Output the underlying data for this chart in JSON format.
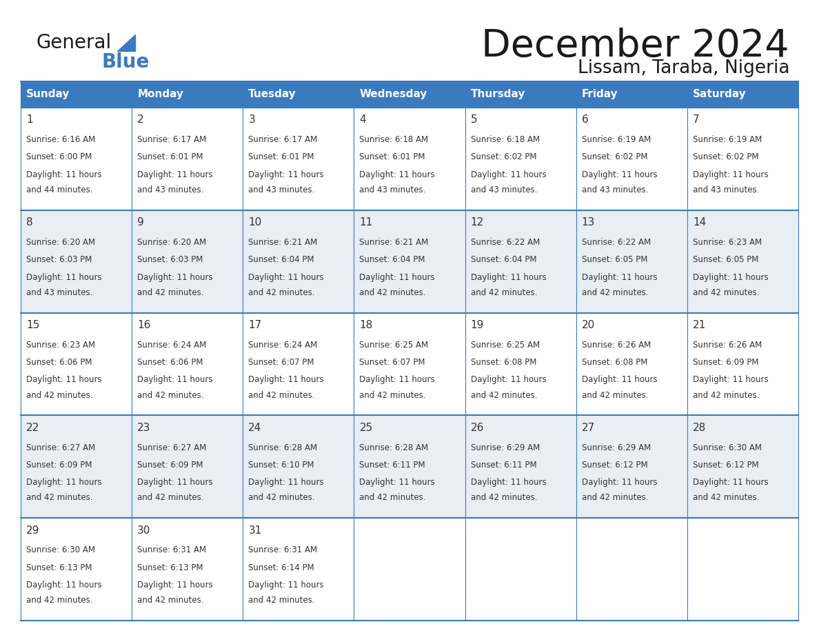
{
  "title": "December 2024",
  "subtitle": "Lissam, Taraba, Nigeria",
  "header_color": "#3a7abf",
  "header_text_color": "#ffffff",
  "day_names": [
    "Sunday",
    "Monday",
    "Tuesday",
    "Wednesday",
    "Thursday",
    "Friday",
    "Saturday"
  ],
  "bg_color": "#ffffff",
  "cell_bg_odd": "#e8eef4",
  "cell_bg_even": "#ffffff",
  "border_color": "#3a7abf",
  "text_color": "#333333",
  "days": [
    {
      "date": 1,
      "col": 0,
      "row": 0,
      "sunrise": "6:16 AM",
      "sunset": "6:00 PM",
      "daylight_min": "44"
    },
    {
      "date": 2,
      "col": 1,
      "row": 0,
      "sunrise": "6:17 AM",
      "sunset": "6:01 PM",
      "daylight_min": "43"
    },
    {
      "date": 3,
      "col": 2,
      "row": 0,
      "sunrise": "6:17 AM",
      "sunset": "6:01 PM",
      "daylight_min": "43"
    },
    {
      "date": 4,
      "col": 3,
      "row": 0,
      "sunrise": "6:18 AM",
      "sunset": "6:01 PM",
      "daylight_min": "43"
    },
    {
      "date": 5,
      "col": 4,
      "row": 0,
      "sunrise": "6:18 AM",
      "sunset": "6:02 PM",
      "daylight_min": "43"
    },
    {
      "date": 6,
      "col": 5,
      "row": 0,
      "sunrise": "6:19 AM",
      "sunset": "6:02 PM",
      "daylight_min": "43"
    },
    {
      "date": 7,
      "col": 6,
      "row": 0,
      "sunrise": "6:19 AM",
      "sunset": "6:02 PM",
      "daylight_min": "43"
    },
    {
      "date": 8,
      "col": 0,
      "row": 1,
      "sunrise": "6:20 AM",
      "sunset": "6:03 PM",
      "daylight_min": "43"
    },
    {
      "date": 9,
      "col": 1,
      "row": 1,
      "sunrise": "6:20 AM",
      "sunset": "6:03 PM",
      "daylight_min": "42"
    },
    {
      "date": 10,
      "col": 2,
      "row": 1,
      "sunrise": "6:21 AM",
      "sunset": "6:04 PM",
      "daylight_min": "42"
    },
    {
      "date": 11,
      "col": 3,
      "row": 1,
      "sunrise": "6:21 AM",
      "sunset": "6:04 PM",
      "daylight_min": "42"
    },
    {
      "date": 12,
      "col": 4,
      "row": 1,
      "sunrise": "6:22 AM",
      "sunset": "6:04 PM",
      "daylight_min": "42"
    },
    {
      "date": 13,
      "col": 5,
      "row": 1,
      "sunrise": "6:22 AM",
      "sunset": "6:05 PM",
      "daylight_min": "42"
    },
    {
      "date": 14,
      "col": 6,
      "row": 1,
      "sunrise": "6:23 AM",
      "sunset": "6:05 PM",
      "daylight_min": "42"
    },
    {
      "date": 15,
      "col": 0,
      "row": 2,
      "sunrise": "6:23 AM",
      "sunset": "6:06 PM",
      "daylight_min": "42"
    },
    {
      "date": 16,
      "col": 1,
      "row": 2,
      "sunrise": "6:24 AM",
      "sunset": "6:06 PM",
      "daylight_min": "42"
    },
    {
      "date": 17,
      "col": 2,
      "row": 2,
      "sunrise": "6:24 AM",
      "sunset": "6:07 PM",
      "daylight_min": "42"
    },
    {
      "date": 18,
      "col": 3,
      "row": 2,
      "sunrise": "6:25 AM",
      "sunset": "6:07 PM",
      "daylight_min": "42"
    },
    {
      "date": 19,
      "col": 4,
      "row": 2,
      "sunrise": "6:25 AM",
      "sunset": "6:08 PM",
      "daylight_min": "42"
    },
    {
      "date": 20,
      "col": 5,
      "row": 2,
      "sunrise": "6:26 AM",
      "sunset": "6:08 PM",
      "daylight_min": "42"
    },
    {
      "date": 21,
      "col": 6,
      "row": 2,
      "sunrise": "6:26 AM",
      "sunset": "6:09 PM",
      "daylight_min": "42"
    },
    {
      "date": 22,
      "col": 0,
      "row": 3,
      "sunrise": "6:27 AM",
      "sunset": "6:09 PM",
      "daylight_min": "42"
    },
    {
      "date": 23,
      "col": 1,
      "row": 3,
      "sunrise": "6:27 AM",
      "sunset": "6:09 PM",
      "daylight_min": "42"
    },
    {
      "date": 24,
      "col": 2,
      "row": 3,
      "sunrise": "6:28 AM",
      "sunset": "6:10 PM",
      "daylight_min": "42"
    },
    {
      "date": 25,
      "col": 3,
      "row": 3,
      "sunrise": "6:28 AM",
      "sunset": "6:11 PM",
      "daylight_min": "42"
    },
    {
      "date": 26,
      "col": 4,
      "row": 3,
      "sunrise": "6:29 AM",
      "sunset": "6:11 PM",
      "daylight_min": "42"
    },
    {
      "date": 27,
      "col": 5,
      "row": 3,
      "sunrise": "6:29 AM",
      "sunset": "6:12 PM",
      "daylight_min": "42"
    },
    {
      "date": 28,
      "col": 6,
      "row": 3,
      "sunrise": "6:30 AM",
      "sunset": "6:12 PM",
      "daylight_min": "42"
    },
    {
      "date": 29,
      "col": 0,
      "row": 4,
      "sunrise": "6:30 AM",
      "sunset": "6:13 PM",
      "daylight_min": "42"
    },
    {
      "date": 30,
      "col": 1,
      "row": 4,
      "sunrise": "6:31 AM",
      "sunset": "6:13 PM",
      "daylight_min": "42"
    },
    {
      "date": 31,
      "col": 2,
      "row": 4,
      "sunrise": "6:31 AM",
      "sunset": "6:14 PM",
      "daylight_min": "42"
    }
  ]
}
